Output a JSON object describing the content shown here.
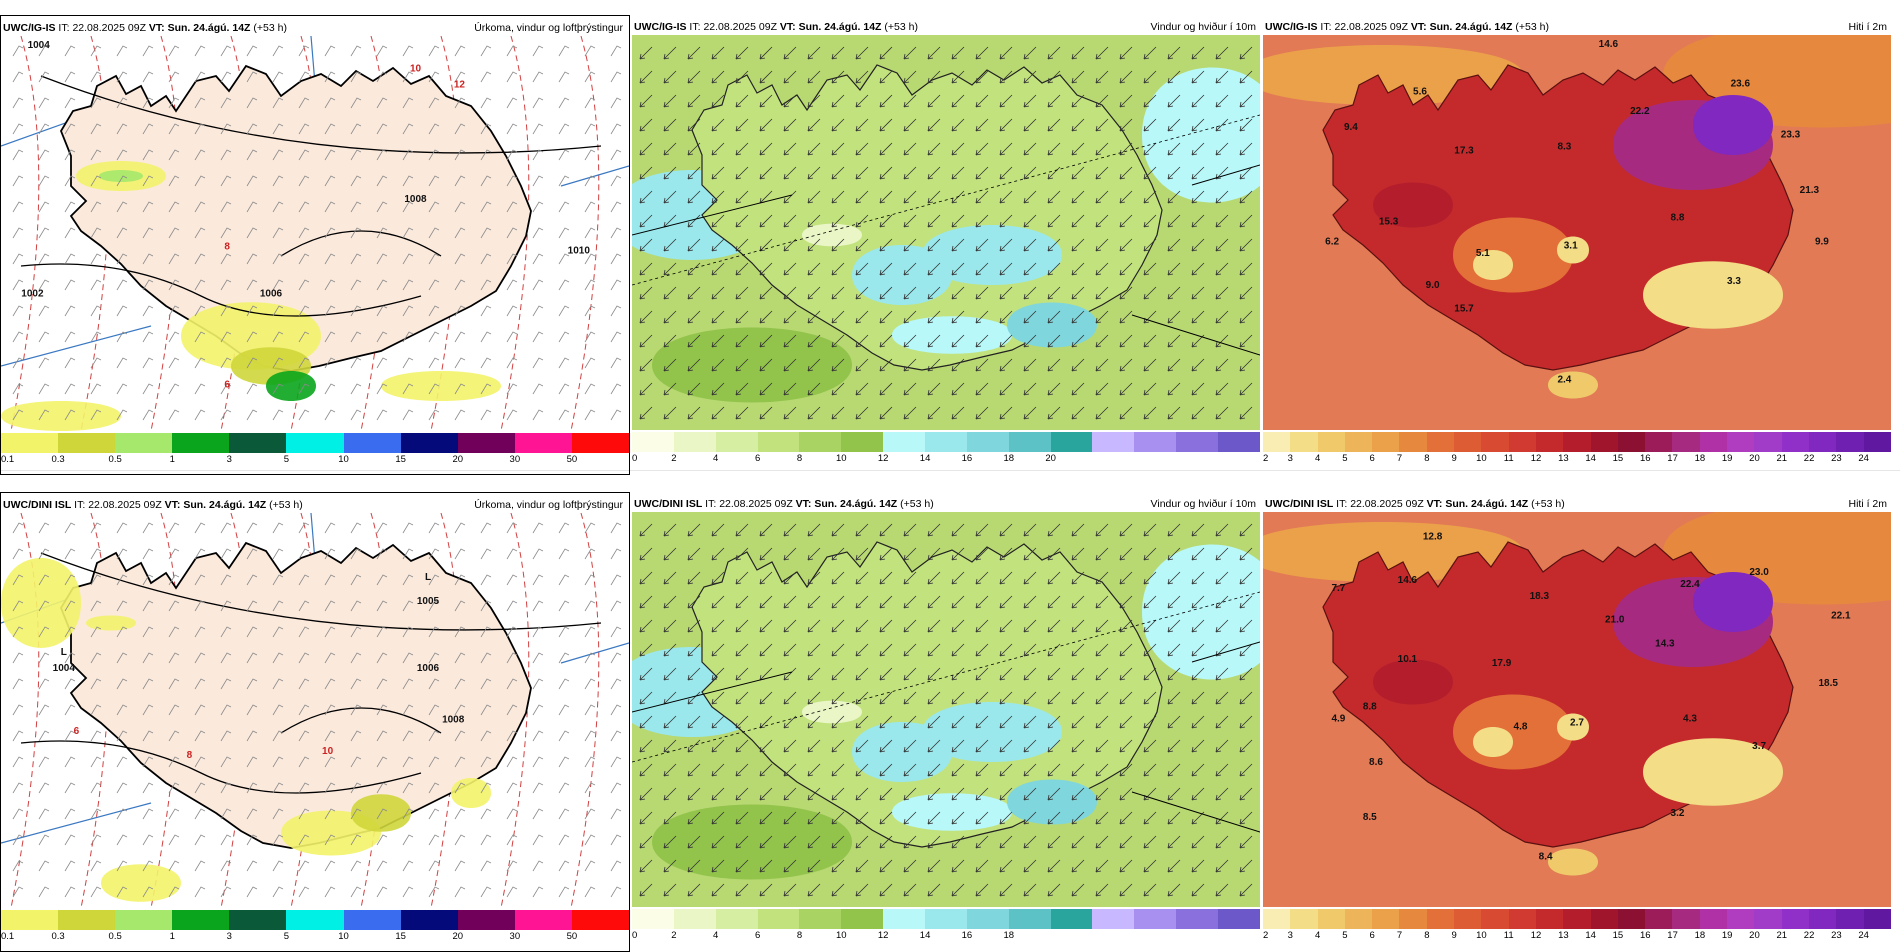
{
  "legends": {
    "precip": {
      "colors": [
        "#f3f36a",
        "#cfd63a",
        "#a5e86c",
        "#0aa51c",
        "#0a5a3a",
        "#00f0e6",
        "#3a6cf0",
        "#050a7a",
        "#70005a",
        "#ff1493",
        "#ff0a0a"
      ],
      "ticks": [
        "0.1",
        "0.3",
        "0.5",
        "1",
        "3",
        "5",
        "10",
        "15",
        "20",
        "30",
        "50"
      ]
    },
    "wind": {
      "colors": [
        "#fbfde6",
        "#eaf6c6",
        "#d6eea2",
        "#c2e27e",
        "#a9d464",
        "#92c44c",
        "#b8f8f8",
        "#9ae8ec",
        "#7fd6dc",
        "#5cc2c6",
        "#2aa59e",
        "#c8b8ff",
        "#a890f0",
        "#8a70dc",
        "#6c58c8"
      ],
      "ticks_top": [
        "0",
        "2",
        "4",
        "6",
        "8",
        "10",
        "12",
        "14",
        "16",
        "18",
        "20"
      ],
      "ticks_bottom": [
        "0",
        "2",
        "4",
        "6",
        "8",
        "10",
        "12",
        "14",
        "16",
        "18"
      ]
    },
    "temp": {
      "colors": [
        "#faedb3",
        "#f3dd86",
        "#efc96a",
        "#eeb45a",
        "#eba04a",
        "#e6883e",
        "#e37038",
        "#de5c34",
        "#d84a32",
        "#d03a30",
        "#c42a2c",
        "#b41e2c",
        "#a0142c",
        "#8c1032",
        "#9c1c5a",
        "#a62a80",
        "#b030a6",
        "#b03cc0",
        "#a03cc8",
        "#9030c8",
        "#8028c0",
        "#7020b0",
        "#6018a0"
      ],
      "ticks": [
        "2",
        "3",
        "4",
        "5",
        "6",
        "7",
        "8",
        "9",
        "10",
        "11",
        "12",
        "13",
        "14",
        "15",
        "16",
        "17",
        "18",
        "19",
        "20",
        "21",
        "22",
        "23",
        "24"
      ]
    }
  },
  "panels": [
    {
      "model": "UWC/IG-IS",
      "it_label": "IT:",
      "it": "22.08.2025 09Z",
      "vt_label": "VT:",
      "vt": "Sun. 24.ágú. 14Z",
      "lead": "(+53 h)",
      "title": "Úrkoma, vindur og loftþrýstingur",
      "kind": "precip",
      "labels": [
        {
          "t": "1004"
        },
        {
          "t": "1008"
        },
        {
          "t": "1002"
        },
        {
          "t": "1006"
        },
        {
          "t": "1010"
        },
        {
          "t": "10"
        },
        {
          "t": "12"
        },
        {
          "t": "8"
        },
        {
          "t": "6"
        }
      ]
    },
    {
      "model": "UWC/IG-IS",
      "it_label": "IT:",
      "it": "22.08.2025 09Z",
      "vt_label": "VT:",
      "vt": "Sun. 24.ágú. 14Z",
      "lead": "(+53 h)",
      "title": "Vindur og hviður í 10m",
      "kind": "wind",
      "labels": []
    },
    {
      "model": "UWC/IG-IS",
      "it_label": "IT:",
      "it": "22.08.2025 09Z",
      "vt_label": "VT:",
      "vt": "Sun. 24.ágú. 14Z",
      "lead": "(+53 h)",
      "title": "Hiti í 2m",
      "kind": "temp",
      "labels": [
        {
          "t": "14.6"
        },
        {
          "t": "5.6"
        },
        {
          "t": "23.6"
        },
        {
          "t": "9.4"
        },
        {
          "t": "22.2"
        },
        {
          "t": "8.3"
        },
        {
          "t": "23.3"
        },
        {
          "t": "17.3"
        },
        {
          "t": "21.3"
        },
        {
          "t": "15.3"
        },
        {
          "t": "8.8"
        },
        {
          "t": "6.2"
        },
        {
          "t": "5.1"
        },
        {
          "t": "3.1"
        },
        {
          "t": "9.9"
        },
        {
          "t": "9.0"
        },
        {
          "t": "3.3"
        },
        {
          "t": "15.7"
        },
        {
          "t": "2.4"
        }
      ]
    },
    {
      "model": "UWC/DINI ISL",
      "it_label": "IT:",
      "it": "22.08.2025 09Z",
      "vt_label": "VT:",
      "vt": "Sun. 24.ágú. 14Z",
      "lead": "(+53 h)",
      "title": "Úrkoma, vindur og loftþrýstingur",
      "kind": "precip",
      "labels": [
        {
          "t": "L"
        },
        {
          "t": "1005"
        },
        {
          "t": "L"
        },
        {
          "t": "1004"
        },
        {
          "t": "1006"
        },
        {
          "t": "1008"
        },
        {
          "t": "10"
        },
        {
          "t": "8"
        },
        {
          "t": "6"
        }
      ]
    },
    {
      "model": "UWC/DINI ISL",
      "it_label": "IT:",
      "it": "22.08.2025 09Z",
      "vt_label": "VT:",
      "vt": "Sun. 24.ágú. 14Z",
      "lead": "(+53 h)",
      "title": "Vindur og hviður í 10m",
      "kind": "wind",
      "labels": []
    },
    {
      "model": "UWC/DINI ISL",
      "it_label": "IT:",
      "it": "22.08.2025 09Z",
      "vt_label": "VT:",
      "vt": "Sun. 24.ágú. 14Z",
      "lead": "(+53 h)",
      "title": "Hiti í 2m",
      "kind": "temp",
      "labels": [
        {
          "t": "12.8"
        },
        {
          "t": "23.0"
        },
        {
          "t": "7.7"
        },
        {
          "t": "14.6"
        },
        {
          "t": "22.4"
        },
        {
          "t": "18.3"
        },
        {
          "t": "22.1"
        },
        {
          "t": "21.0"
        },
        {
          "t": "10.1"
        },
        {
          "t": "17.9"
        },
        {
          "t": "14.3"
        },
        {
          "t": "18.5"
        },
        {
          "t": "8.8"
        },
        {
          "t": "4.9"
        },
        {
          "t": "4.8"
        },
        {
          "t": "2.7"
        },
        {
          "t": "4.3"
        },
        {
          "t": "3.7"
        },
        {
          "t": "8.6"
        },
        {
          "t": "3.2"
        },
        {
          "t": "8.5"
        },
        {
          "t": "8.4"
        }
      ]
    }
  ]
}
